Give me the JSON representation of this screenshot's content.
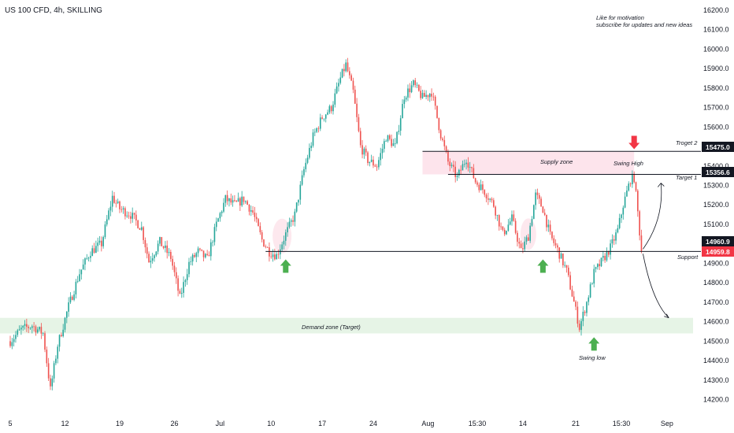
{
  "header": {
    "title": "US 100 CFD, 4h, SKILLING"
  },
  "motivation": {
    "line1": "Like for motivation",
    "line2": "subscribe for updates and new ideas"
  },
  "chart_data": {
    "type": "candlestick",
    "title": "US 100 CFD, 4h, SKILLING",
    "ylim": [
      14170,
      16240
    ],
    "y_ticks": [
      {
        "v": 16200,
        "label": "16200.0"
      },
      {
        "v": 16100,
        "label": "16100.0"
      },
      {
        "v": 16000,
        "label": "16000.0"
      },
      {
        "v": 15900,
        "label": "15900.0"
      },
      {
        "v": 15800,
        "label": "15800.0"
      },
      {
        "v": 15700,
        "label": "15700.0"
      },
      {
        "v": 15600,
        "label": "15600.0"
      },
      {
        "v": 15500,
        "label": "15500.0"
      },
      {
        "v": 15400,
        "label": "15400.0"
      },
      {
        "v": 15300,
        "label": "15300.0"
      },
      {
        "v": 15200,
        "label": "15200.0"
      },
      {
        "v": 15100,
        "label": "15100.0"
      },
      {
        "v": 15000,
        "label": "15000.0"
      },
      {
        "v": 14900,
        "label": "14900.0"
      },
      {
        "v": 14800,
        "label": "14800.0"
      },
      {
        "v": 14700,
        "label": "14700.0"
      },
      {
        "v": 14600,
        "label": "14600.0"
      },
      {
        "v": 14500,
        "label": "14500.0"
      },
      {
        "v": 14400,
        "label": "14400.0"
      },
      {
        "v": 14300,
        "label": "14300.0"
      },
      {
        "v": 14200,
        "label": "14200.0"
      }
    ],
    "x_ticks": [
      {
        "bar": 0,
        "label": "5"
      },
      {
        "bar": 30,
        "label": "12"
      },
      {
        "bar": 60,
        "label": "19"
      },
      {
        "bar": 90,
        "label": "26"
      },
      {
        "bar": 115,
        "label": "Jul"
      },
      {
        "bar": 143,
        "label": "10"
      },
      {
        "bar": 171,
        "label": "17"
      },
      {
        "bar": 199,
        "label": "24"
      },
      {
        "bar": 229,
        "label": "Aug"
      },
      {
        "bar": 256,
        "label": "15:30"
      },
      {
        "bar": 281,
        "label": "14"
      },
      {
        "bar": 310,
        "label": "21"
      },
      {
        "bar": 335,
        "label": "15:30"
      },
      {
        "bar": 360,
        "label": "Sep"
      }
    ],
    "x_bar_range": [
      0,
      373
    ],
    "path": [
      [
        0,
        14500
      ],
      [
        6,
        14560
      ],
      [
        12,
        14580
      ],
      [
        18,
        14540
      ],
      [
        22,
        14250
      ],
      [
        26,
        14480
      ],
      [
        32,
        14680
      ],
      [
        38,
        14850
      ],
      [
        44,
        14960
      ],
      [
        50,
        15000
      ],
      [
        56,
        15240
      ],
      [
        60,
        15180
      ],
      [
        66,
        15150
      ],
      [
        72,
        15080
      ],
      [
        76,
        14910
      ],
      [
        82,
        15010
      ],
      [
        88,
        14930
      ],
      [
        93,
        14720
      ],
      [
        98,
        14900
      ],
      [
        103,
        14960
      ],
      [
        108,
        14920
      ],
      [
        113,
        15100
      ],
      [
        118,
        15230
      ],
      [
        123,
        15200
      ],
      [
        128,
        15230
      ],
      [
        133,
        15160
      ],
      [
        138,
        15020
      ],
      [
        142,
        14960
      ],
      [
        146,
        14940
      ],
      [
        151,
        15050
      ],
      [
        156,
        15150
      ],
      [
        161,
        15380
      ],
      [
        166,
        15550
      ],
      [
        171,
        15650
      ],
      [
        176,
        15700
      ],
      [
        181,
        15850
      ],
      [
        184,
        15920
      ],
      [
        188,
        15780
      ],
      [
        192,
        15500
      ],
      [
        196,
        15430
      ],
      [
        201,
        15400
      ],
      [
        206,
        15550
      ],
      [
        211,
        15500
      ],
      [
        216,
        15760
      ],
      [
        221,
        15820
      ],
      [
        226,
        15750
      ],
      [
        231,
        15780
      ],
      [
        236,
        15560
      ],
      [
        240,
        15420
      ],
      [
        245,
        15340
      ],
      [
        250,
        15440
      ],
      [
        255,
        15320
      ],
      [
        260,
        15270
      ],
      [
        265,
        15200
      ],
      [
        270,
        15050
      ],
      [
        275,
        15130
      ],
      [
        280,
        14960
      ],
      [
        284,
        15040
      ],
      [
        288,
        15250
      ],
      [
        292,
        15180
      ],
      [
        296,
        15040
      ],
      [
        300,
        14970
      ],
      [
        305,
        14860
      ],
      [
        309,
        14700
      ],
      [
        312,
        14570
      ],
      [
        316,
        14700
      ],
      [
        320,
        14850
      ],
      [
        325,
        14920
      ],
      [
        329,
        14980
      ],
      [
        333,
        15070
      ],
      [
        336,
        15200
      ],
      [
        340,
        15330
      ],
      [
        342,
        15340
      ],
      [
        344,
        15160
      ],
      [
        346,
        14959.8
      ]
    ],
    "price_levels": [
      {
        "name": "Troget 2",
        "value": 15475.0,
        "label": "15475.0"
      },
      {
        "name": "Target 1",
        "value": 15356.6,
        "label": "15356.6"
      },
      {
        "name": "Support",
        "value": 14960.9,
        "label": "14960.9"
      },
      {
        "name": "Last price",
        "value": 14959.8,
        "label": "14959.8"
      }
    ],
    "zones": [
      {
        "name": "Supply zone",
        "from": 15356.6,
        "to": 15475.0
      },
      {
        "name": "Demand zone (Target)",
        "from": 14540,
        "to": 14620
      }
    ],
    "annotations": [
      {
        "label": "Swing High",
        "bar": 342,
        "value": 15356.6
      },
      {
        "label": "Swing low",
        "bar": 312,
        "value": 14570
      }
    ],
    "up_arrows_bars": [
      151,
      292,
      320
    ],
    "down_arrow_bar": 342,
    "colors": {
      "up": "#26a69a",
      "down": "#ef5350",
      "supply": "#fde4ec",
      "demand": "#e6f4e6",
      "arrow_up": "#4caf50",
      "arrow_down": "#f23645",
      "tag_dark": "#131722",
      "tag_red": "#f23645"
    }
  },
  "labels": {
    "supply": "Supply zone",
    "demand": "Demand zone (Target)",
    "target2": "Troget 2",
    "target1": "Target 1",
    "support": "Support",
    "swing_high": "Swing High",
    "swing_low": "Swing low",
    "tag_target2": "15475.0",
    "tag_target1": "15356.6",
    "tag_support": "14960.9",
    "tag_last": "14959.8"
  }
}
